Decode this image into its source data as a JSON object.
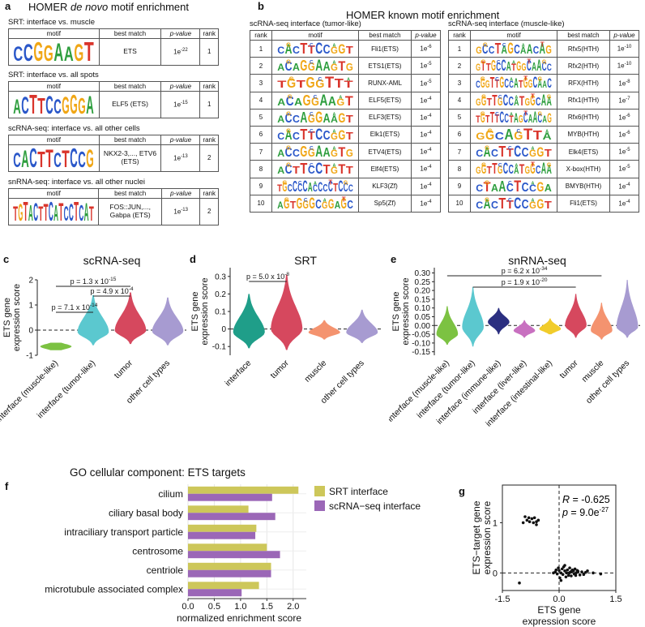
{
  "panel_a": {
    "letter": "a",
    "title_pre": "HOMER ",
    "title_em": "de novo",
    "title_post": " motif enrichment",
    "headers": {
      "motif": "motif",
      "best_match": "best match",
      "pvalue": "p-value",
      "rank": "rank"
    },
    "blocks": [
      {
        "title": "SRT: interface vs. muscle",
        "logo": "CCGGAAGT",
        "best_match": "ETS",
        "p_base": "1e",
        "p_exp": "-22",
        "rank": "1"
      },
      {
        "title": "SRT: interface vs. all spots",
        "logo": "ACTTCCGGGA",
        "best_match": "ELF5 (ETS)",
        "p_base": "1e",
        "p_exp": "-15",
        "rank": "1"
      },
      {
        "title": "scRNA-seq: interface vs. all other cells",
        "logo": "CACTTCTCCG",
        "best_match": "NKX2-3,..., ETV6 (ETS)",
        "p_base": "1e",
        "p_exp": "-13",
        "rank": "2"
      },
      {
        "title": "snRNA-seq: interface vs. all other nuclei",
        "logo": "TGTACTTCATCCTCAT",
        "best_match": "FOS::JUN,..., Gabpa (ETS)",
        "p_base": "1e",
        "p_exp": "-13",
        "rank": "2"
      }
    ]
  },
  "panel_b": {
    "letter": "b",
    "title": "HOMER known motif enrichment",
    "headers": {
      "rank": "rank",
      "motif": "motif",
      "best_match": "best match",
      "pvalue": "p-value"
    },
    "tables": [
      {
        "title": "scRNA-seq interface (tumor-like)",
        "rows": [
          {
            "rank": "1",
            "logo": "CACTTCCGGT",
            "match": "Fli1(ETS)",
            "p_base": "1e",
            "p_exp": "-6"
          },
          {
            "rank": "2",
            "logo": "ACAGGAAGTG",
            "match": "ETS1(ETS)",
            "p_base": "1e",
            "p_exp": "-5"
          },
          {
            "rank": "3",
            "logo": "TGTGGTTT",
            "match": "RUNX-AML",
            "p_base": "1e",
            "p_exp": "-5"
          },
          {
            "rank": "4",
            "logo": "ACAGGAAGT",
            "match": "ELF5(ETS)",
            "p_base": "1e",
            "p_exp": "-4"
          },
          {
            "rank": "5",
            "logo": "ACCAGGAAGT",
            "match": "ELF3(ETS)",
            "p_base": "1e",
            "p_exp": "-4"
          },
          {
            "rank": "6",
            "logo": "CACTTCCGGT",
            "match": "Elk1(ETS)",
            "p_base": "1e",
            "p_exp": "-4"
          },
          {
            "rank": "7",
            "logo": "ACCGGAAGTG",
            "match": "ETV4(ETS)",
            "p_base": "1e",
            "p_exp": "-4"
          },
          {
            "rank": "8",
            "logo": "ACTTCCTGTT",
            "match": "Elf4(ETS)",
            "p_base": "1e",
            "p_exp": "-4"
          },
          {
            "rank": "9",
            "logo": "TGCCCCACCCCTCCC",
            "match": "KLF3(Zf)",
            "p_base": "1e",
            "p_exp": "-4"
          },
          {
            "rank": "10",
            "logo": "AGTGGGCGGAGC",
            "match": "Sp5(Zf)",
            "p_base": "1e",
            "p_exp": "-4"
          }
        ]
      },
      {
        "title": "scRNA-seq interface (muscle-like)",
        "rows": [
          {
            "rank": "1",
            "logo": "GCCTAGCAACAG",
            "match": "Rfx5(HTH)",
            "p_base": "1e",
            "p_exp": "-10"
          },
          {
            "rank": "2",
            "logo": "GTTGCCATGGCAACC",
            "match": "Rfx2(HTH)",
            "p_base": "1e",
            "p_exp": "-10"
          },
          {
            "rank": "3",
            "logo": "CGGTTGCCATGGCAAC",
            "match": "RFX(HTH)",
            "p_base": "1e",
            "p_exp": "-8"
          },
          {
            "rank": "4",
            "logo": "GGTTGCCATGGCAA",
            "match": "Rfx1(HTH)",
            "p_base": "1e",
            "p_exp": "-7"
          },
          {
            "rank": "5",
            "logo": "TGTTTCCTAGCAACAG",
            "match": "Rfx6(HTH)",
            "p_base": "1e",
            "p_exp": "-6"
          },
          {
            "rank": "6",
            "logo": "GGCAGTTA",
            "match": "MYB(HTH)",
            "p_base": "1e",
            "p_exp": "-6"
          },
          {
            "rank": "7",
            "logo": "CACTTCCGGT",
            "match": "Elk4(ETS)",
            "p_base": "1e",
            "p_exp": "-5"
          },
          {
            "rank": "8",
            "logo": "GGTTGCCATGGCAA",
            "match": "X-box(HTH)",
            "p_base": "1e",
            "p_exp": "-5"
          },
          {
            "rank": "9",
            "logo": "CTAACTCCGA",
            "match": "BMYB(HTH)",
            "p_base": "1e",
            "p_exp": "-4"
          },
          {
            "rank": "10",
            "logo": "CACTTCCGGT",
            "match": "Fli1(ETS)",
            "p_base": "1e",
            "p_exp": "-4"
          }
        ]
      }
    ]
  },
  "panel_c": {
    "letter": "c",
    "title": "scRNA-seq",
    "ylabel1": "ETS gene",
    "ylabel2": "expression score",
    "pvals": [
      "p = 1.3 x 10",
      "-15",
      "p = 4.9 x 10",
      "-4",
      "p = 7.1 x 10",
      "-14"
    ]
  },
  "panel_d": {
    "letter": "d",
    "title": "SRT",
    "ylabel1": "ETS gene",
    "ylabel2": "expression score",
    "pvals": [
      "p = 5.0 x 10",
      "-8"
    ]
  },
  "panel_e": {
    "letter": "e",
    "title": "snRNA-seq",
    "ylabel1": "ETS gene",
    "ylabel2": "expression score",
    "pvals": [
      "p = 6.2 x 10",
      "-34",
      "p = 1.9 x 10",
      "-20"
    ]
  },
  "panel_f": {
    "letter": "f",
    "title": "GO cellular component: ETS targets"
  },
  "panel_g": {
    "letter": "g",
    "stat_r_label": "R",
    "stat_r_value": " = -0.625",
    "stat_p_label": "p",
    "stat_p_value": " = 9.0e",
    "stat_p_exp": "-27"
  },
  "chart_data": [
    {
      "type": "violin",
      "panel": "c",
      "categories": [
        "interface (muscle-like)",
        "interface (tumor-like)",
        "tumor",
        "other cell types"
      ],
      "colors": [
        "#7cc242",
        "#5bc8cf",
        "#d6485e",
        "#a79bd1"
      ],
      "medians": [
        -0.65,
        -0.08,
        -0.02,
        -0.05
      ],
      "ranges": [
        [
          -0.8,
          -0.5
        ],
        [
          -0.6,
          1.4
        ],
        [
          -0.55,
          1.5
        ],
        [
          -0.6,
          1.3
        ]
      ],
      "ylim": [
        -1.0,
        2.0
      ],
      "yticks": [
        -1,
        0,
        1,
        2
      ],
      "ylabel": "ETS gene expression score",
      "refline": 0
    },
    {
      "type": "violin",
      "panel": "d",
      "categories": [
        "interface",
        "tumor",
        "muscle",
        "other cell types"
      ],
      "colors": [
        "#1f9e89",
        "#d6485e",
        "#f4936f",
        "#a79bd1"
      ],
      "medians": [
        -0.02,
        0.0,
        -0.02,
        -0.02
      ],
      "ranges": [
        [
          -0.11,
          0.2
        ],
        [
          -0.12,
          0.31
        ],
        [
          -0.06,
          0.05
        ],
        [
          -0.08,
          0.11
        ]
      ],
      "ylim": [
        -0.15,
        0.35
      ],
      "yticks": [
        -0.1,
        0.0,
        0.1,
        0.2,
        0.3
      ],
      "ylabel": "ETS gene expression score",
      "refline": 0
    },
    {
      "type": "violin",
      "panel": "e",
      "categories": [
        "interface (muscle-like)",
        "interface (tumor-like)",
        "interface (immune-like)",
        "interface (liver-like)",
        "interface (intestinal-like)",
        "tumor",
        "muscle",
        "other cell types"
      ],
      "colors": [
        "#7cc242",
        "#5bc8cf",
        "#2b2f80",
        "#c870c0",
        "#f1cc2b",
        "#d6485e",
        "#f4936f",
        "#a79bd1"
      ],
      "medians": [
        -0.05,
        -0.01,
        0.02,
        -0.03,
        -0.02,
        0.0,
        -0.03,
        -0.01
      ],
      "ranges": [
        [
          -0.11,
          0.11
        ],
        [
          -0.12,
          0.22
        ],
        [
          -0.05,
          0.1
        ],
        [
          -0.07,
          0.03
        ],
        [
          -0.05,
          0.04
        ],
        [
          -0.07,
          0.18
        ],
        [
          -0.08,
          0.13
        ],
        [
          -0.07,
          0.26
        ]
      ],
      "ylim": [
        -0.17,
        0.33
      ],
      "yticks": [
        -0.15,
        -0.1,
        -0.05,
        0.0,
        0.05,
        0.1,
        0.15,
        0.2,
        0.25,
        0.3
      ],
      "ytick_labels": [
        "-0.15",
        "-0.10",
        "-0.05",
        "0.00",
        "0.05",
        "0.10",
        "0.15",
        "0.20",
        "0.25",
        "0.30"
      ],
      "ylabel": "ETS gene expression score",
      "refline": 0
    },
    {
      "type": "bar",
      "panel": "f",
      "orientation": "horizontal",
      "categories": [
        "cilium",
        "ciliary basal body",
        "intraciliary transport particle",
        "centrosome",
        "centriole",
        "microtubule associated complex"
      ],
      "series": [
        {
          "name": "SRT interface",
          "color": "#cdc75a",
          "values": [
            2.1,
            1.15,
            1.3,
            1.5,
            1.58,
            1.35
          ]
        },
        {
          "name": "scRNA−seq interface",
          "color": "#9b67b7",
          "values": [
            1.6,
            1.66,
            1.28,
            1.75,
            1.58,
            1.02
          ]
        }
      ],
      "xlim": [
        0,
        2.25
      ],
      "xticks": [
        0.0,
        0.5,
        1.0,
        1.5,
        2.0
      ],
      "xtick_labels": [
        "0.0",
        "0.5",
        "1.0",
        "1.5",
        "2.0"
      ],
      "xlabel": "normalized enrichment score",
      "legend": "top-right"
    },
    {
      "type": "scatter",
      "panel": "g",
      "xlim": [
        -1.5,
        1.5
      ],
      "ylim": [
        -0.35,
        1.75
      ],
      "xticks": [
        -1.5,
        0.0,
        1.5
      ],
      "xtick_labels": [
        "-1.5",
        "0.0",
        "1.5"
      ],
      "yticks": [
        0,
        1
      ],
      "xlabel": "ETS gene expression score",
      "ylabel": "ETS−target gene expression score",
      "refline_x": 0,
      "refline_y": 0,
      "points": [
        [
          -0.95,
          1.0
        ],
        [
          -0.9,
          1.12
        ],
        [
          -0.85,
          1.05
        ],
        [
          -0.8,
          1.1
        ],
        [
          -0.78,
          1.02
        ],
        [
          -0.72,
          1.08
        ],
        [
          -0.68,
          1.0
        ],
        [
          -0.65,
          1.1
        ],
        [
          -0.6,
          1.02
        ],
        [
          -0.55,
          1.05
        ],
        [
          -0.6,
          0.96
        ],
        [
          -1.05,
          -0.2
        ],
        [
          -0.1,
          0.02
        ],
        [
          -0.05,
          -0.02
        ],
        [
          0.0,
          0.05
        ],
        [
          0.05,
          0.0
        ],
        [
          0.1,
          -0.03
        ],
        [
          0.15,
          0.04
        ],
        [
          0.2,
          0.0
        ],
        [
          0.25,
          -0.05
        ],
        [
          0.3,
          0.02
        ],
        [
          0.35,
          0.06
        ],
        [
          0.4,
          -0.02
        ],
        [
          0.45,
          0.0
        ],
        [
          0.5,
          0.03
        ],
        [
          -0.02,
          0.1
        ],
        [
          0.08,
          0.08
        ],
        [
          0.18,
          -0.08
        ],
        [
          0.28,
          0.1
        ],
        [
          0.38,
          0.04
        ],
        [
          0.55,
          -0.04
        ],
        [
          0.6,
          0.02
        ],
        [
          0.7,
          0.01
        ],
        [
          0.9,
          0.0
        ],
        [
          1.1,
          -0.02
        ],
        [
          0.12,
          0.12
        ],
        [
          0.22,
          0.06
        ],
        [
          0.32,
          -0.06
        ],
        [
          0.42,
          0.08
        ],
        [
          0.02,
          -0.1
        ],
        [
          -0.08,
          0.06
        ],
        [
          0.48,
          0.05
        ],
        [
          0.65,
          -0.03
        ],
        [
          0.75,
          0.04
        ],
        [
          0.05,
          -0.15
        ],
        [
          0.15,
          0.15
        ],
        [
          -0.15,
          0.0
        ],
        [
          0.27,
          0.0
        ],
        [
          0.33,
          0.03
        ],
        [
          0.44,
          -0.05
        ]
      ]
    }
  ]
}
